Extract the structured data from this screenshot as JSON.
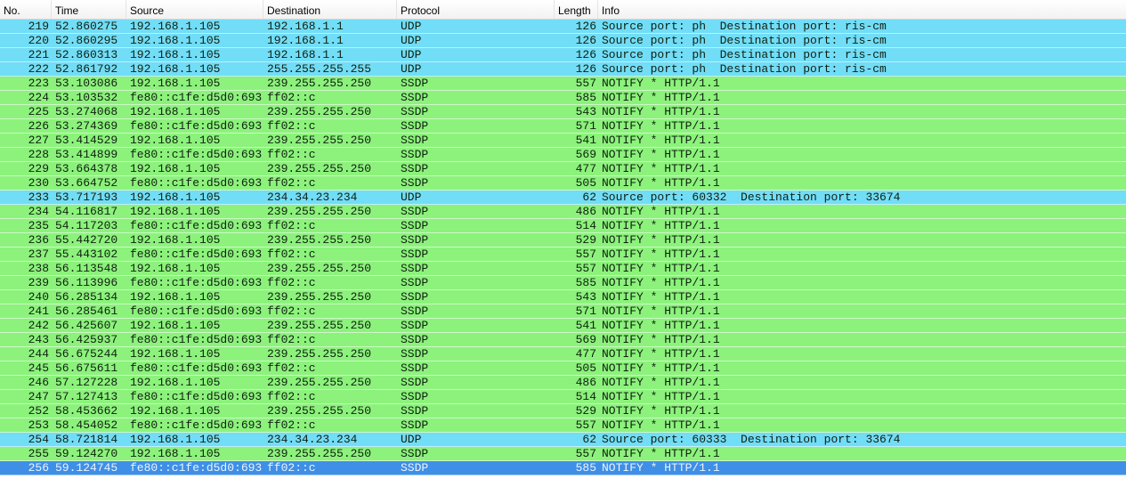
{
  "columns": {
    "no": "No.",
    "time": "Time",
    "source": "Source",
    "destination": "Destination",
    "protocol": "Protocol",
    "length": "Length",
    "info": "Info"
  },
  "colors": {
    "udp": "#72ddf7",
    "ssdp": "#8cf27c",
    "selected": "#3f8fe6"
  },
  "selected_no": "256",
  "packets": [
    [
      "219",
      "52.860275",
      "192.168.1.105",
      "192.168.1.1",
      "UDP",
      "126",
      "Source port: ph  Destination port: ris-cm"
    ],
    [
      "220",
      "52.860295",
      "192.168.1.105",
      "192.168.1.1",
      "UDP",
      "126",
      "Source port: ph  Destination port: ris-cm"
    ],
    [
      "221",
      "52.860313",
      "192.168.1.105",
      "192.168.1.1",
      "UDP",
      "126",
      "Source port: ph  Destination port: ris-cm"
    ],
    [
      "222",
      "52.861792",
      "192.168.1.105",
      "255.255.255.255",
      "UDP",
      "126",
      "Source port: ph  Destination port: ris-cm"
    ],
    [
      "223",
      "53.103086",
      "192.168.1.105",
      "239.255.255.250",
      "SSDP",
      "557",
      "NOTIFY * HTTP/1.1"
    ],
    [
      "224",
      "53.103532",
      "fe80::c1fe:d5d0:693",
      "ff02::c",
      "SSDP",
      "585",
      "NOTIFY * HTTP/1.1"
    ],
    [
      "225",
      "53.274068",
      "192.168.1.105",
      "239.255.255.250",
      "SSDP",
      "543",
      "NOTIFY * HTTP/1.1"
    ],
    [
      "226",
      "53.274369",
      "fe80::c1fe:d5d0:693",
      "ff02::c",
      "SSDP",
      "571",
      "NOTIFY * HTTP/1.1"
    ],
    [
      "227",
      "53.414529",
      "192.168.1.105",
      "239.255.255.250",
      "SSDP",
      "541",
      "NOTIFY * HTTP/1.1"
    ],
    [
      "228",
      "53.414899",
      "fe80::c1fe:d5d0:693",
      "ff02::c",
      "SSDP",
      "569",
      "NOTIFY * HTTP/1.1"
    ],
    [
      "229",
      "53.664378",
      "192.168.1.105",
      "239.255.255.250",
      "SSDP",
      "477",
      "NOTIFY * HTTP/1.1"
    ],
    [
      "230",
      "53.664752",
      "fe80::c1fe:d5d0:693",
      "ff02::c",
      "SSDP",
      "505",
      "NOTIFY * HTTP/1.1"
    ],
    [
      "233",
      "53.717193",
      "192.168.1.105",
      "234.34.23.234",
      "UDP",
      "62",
      "Source port: 60332  Destination port: 33674"
    ],
    [
      "234",
      "54.116817",
      "192.168.1.105",
      "239.255.255.250",
      "SSDP",
      "486",
      "NOTIFY * HTTP/1.1"
    ],
    [
      "235",
      "54.117203",
      "fe80::c1fe:d5d0:693",
      "ff02::c",
      "SSDP",
      "514",
      "NOTIFY * HTTP/1.1"
    ],
    [
      "236",
      "55.442720",
      "192.168.1.105",
      "239.255.255.250",
      "SSDP",
      "529",
      "NOTIFY * HTTP/1.1"
    ],
    [
      "237",
      "55.443102",
      "fe80::c1fe:d5d0:693",
      "ff02::c",
      "SSDP",
      "557",
      "NOTIFY * HTTP/1.1"
    ],
    [
      "238",
      "56.113548",
      "192.168.1.105",
      "239.255.255.250",
      "SSDP",
      "557",
      "NOTIFY * HTTP/1.1"
    ],
    [
      "239",
      "56.113996",
      "fe80::c1fe:d5d0:693",
      "ff02::c",
      "SSDP",
      "585",
      "NOTIFY * HTTP/1.1"
    ],
    [
      "240",
      "56.285134",
      "192.168.1.105",
      "239.255.255.250",
      "SSDP",
      "543",
      "NOTIFY * HTTP/1.1"
    ],
    [
      "241",
      "56.285461",
      "fe80::c1fe:d5d0:693",
      "ff02::c",
      "SSDP",
      "571",
      "NOTIFY * HTTP/1.1"
    ],
    [
      "242",
      "56.425607",
      "192.168.1.105",
      "239.255.255.250",
      "SSDP",
      "541",
      "NOTIFY * HTTP/1.1"
    ],
    [
      "243",
      "56.425937",
      "fe80::c1fe:d5d0:693",
      "ff02::c",
      "SSDP",
      "569",
      "NOTIFY * HTTP/1.1"
    ],
    [
      "244",
      "56.675244",
      "192.168.1.105",
      "239.255.255.250",
      "SSDP",
      "477",
      "NOTIFY * HTTP/1.1"
    ],
    [
      "245",
      "56.675611",
      "fe80::c1fe:d5d0:693",
      "ff02::c",
      "SSDP",
      "505",
      "NOTIFY * HTTP/1.1"
    ],
    [
      "246",
      "57.127228",
      "192.168.1.105",
      "239.255.255.250",
      "SSDP",
      "486",
      "NOTIFY * HTTP/1.1"
    ],
    [
      "247",
      "57.127413",
      "fe80::c1fe:d5d0:693",
      "ff02::c",
      "SSDP",
      "514",
      "NOTIFY * HTTP/1.1"
    ],
    [
      "252",
      "58.453662",
      "192.168.1.105",
      "239.255.255.250",
      "SSDP",
      "529",
      "NOTIFY * HTTP/1.1"
    ],
    [
      "253",
      "58.454052",
      "fe80::c1fe:d5d0:693",
      "ff02::c",
      "SSDP",
      "557",
      "NOTIFY * HTTP/1.1"
    ],
    [
      "254",
      "58.721814",
      "192.168.1.105",
      "234.34.23.234",
      "UDP",
      "62",
      "Source port: 60333  Destination port: 33674"
    ],
    [
      "255",
      "59.124270",
      "192.168.1.105",
      "239.255.255.250",
      "SSDP",
      "557",
      "NOTIFY * HTTP/1.1"
    ],
    [
      "256",
      "59.124745",
      "fe80::c1fe:d5d0:693",
      "ff02::c",
      "SSDP",
      "585",
      "NOTIFY * HTTP/1.1"
    ]
  ]
}
